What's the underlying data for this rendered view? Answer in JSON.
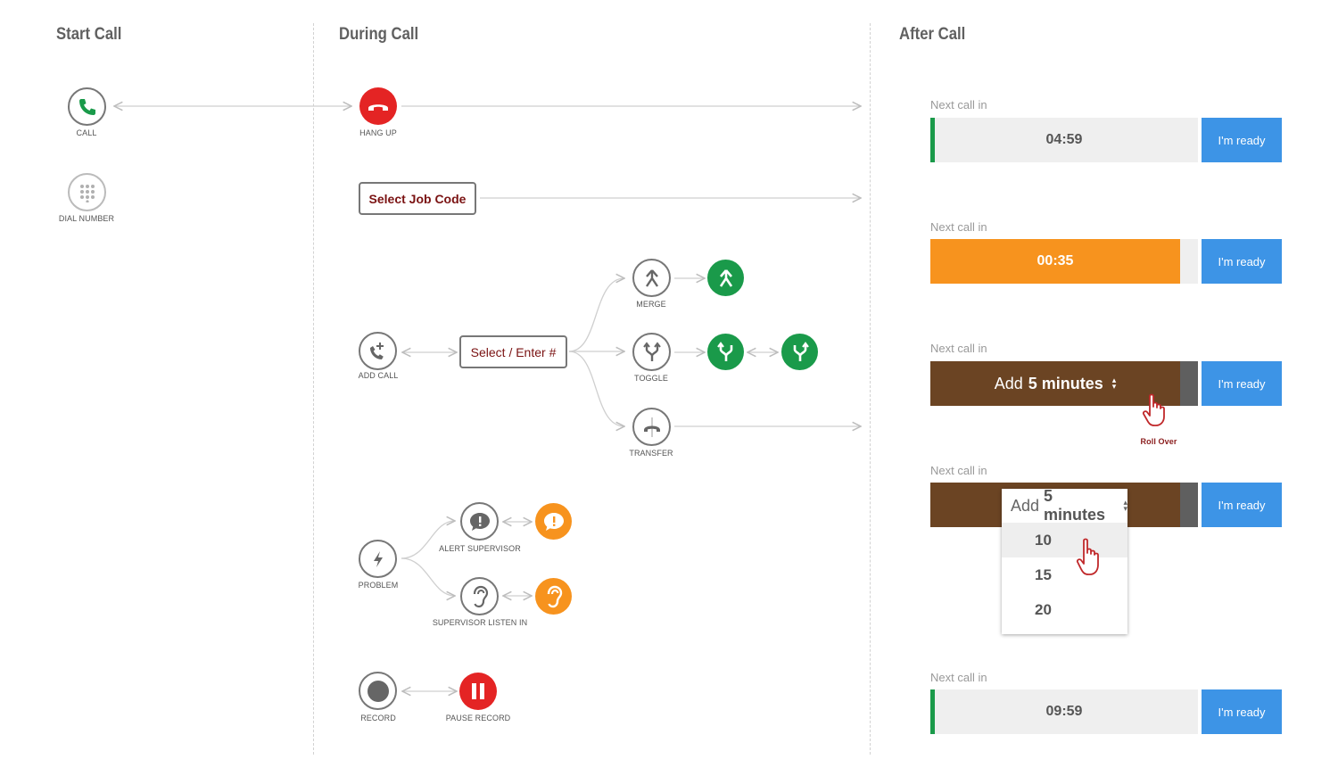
{
  "sections": {
    "start": "Start Call",
    "during": "During Call",
    "after": "After Call"
  },
  "nodes": {
    "call": "CALL",
    "dial_number": "DIAL NUMBER",
    "hang_up": "HANG UP",
    "add_call": "ADD CALL",
    "merge": "MERGE",
    "toggle": "TOGGLE",
    "transfer": "TRANSFER",
    "problem": "PROBLEM",
    "alert_supervisor": "ALERT SUPERVISOR",
    "supervisor_listen_in": "SUPERVISOR LISTEN IN",
    "record": "RECORD",
    "pause_record": "PAUSE RECORD"
  },
  "buttons": {
    "select_job_code": "Select Job Code",
    "select_enter": "Select / Enter #"
  },
  "after_call": {
    "next_call_label": "Next call in",
    "ready_label": "I'm ready",
    "timer1": "04:59",
    "timer2": "00:35",
    "timer5": "09:59",
    "add_prefix": "Add",
    "add_value": "5 minutes",
    "roll_over": "Roll Over",
    "options": [
      "10",
      "15",
      "20"
    ]
  },
  "colors": {
    "green": "#1a9a4a",
    "red": "#e42424",
    "orange": "#f7931e",
    "brown": "#6b4423",
    "blue": "#3d94e6"
  }
}
